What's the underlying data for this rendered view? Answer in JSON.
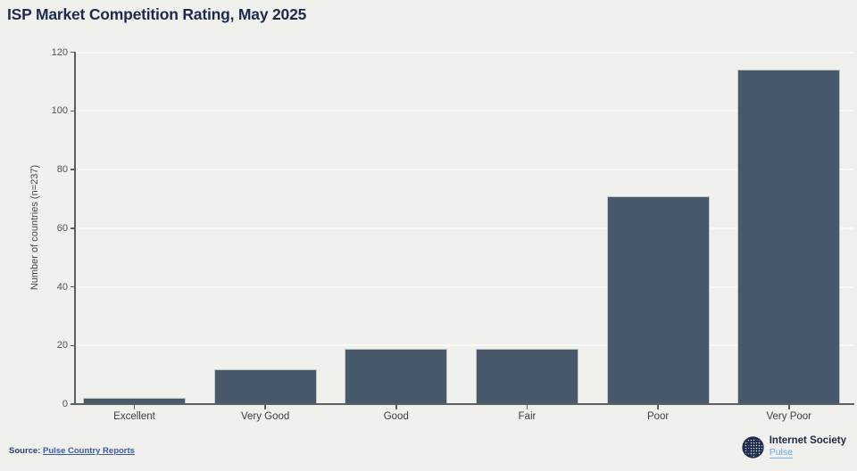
{
  "title": "ISP Market Competition Rating, May 2025",
  "chart_data": {
    "type": "bar",
    "categories": [
      "Excellent",
      "Very Good",
      "Good",
      "Fair",
      "Poor",
      "Very Poor"
    ],
    "values": [
      2,
      12,
      19,
      19,
      71,
      114
    ],
    "title": "ISP Market Competition Rating, May 2025",
    "xlabel": "",
    "ylabel": "Number of countries (n=237)",
    "ylim": [
      0,
      120
    ],
    "yticks": [
      0,
      20,
      40,
      60,
      80,
      100,
      120
    ],
    "grid": "faint horizontal lines at each y tick",
    "legend": "none",
    "bar_color": "#47596b",
    "background_color": "#f0f1ec"
  },
  "footer": {
    "source_label": "Source:",
    "source_link": "Pulse Country Reports"
  },
  "logo": {
    "org": "Internet Society",
    "product": "Pulse"
  },
  "colors": {
    "title_text": "#1b2a4e",
    "axis": "#5b5e60",
    "tick_text": "#515151",
    "category_text": "#3c3c3c",
    "link_blue": "#3b5aa9",
    "pulse_blue": "#68a7e8"
  }
}
